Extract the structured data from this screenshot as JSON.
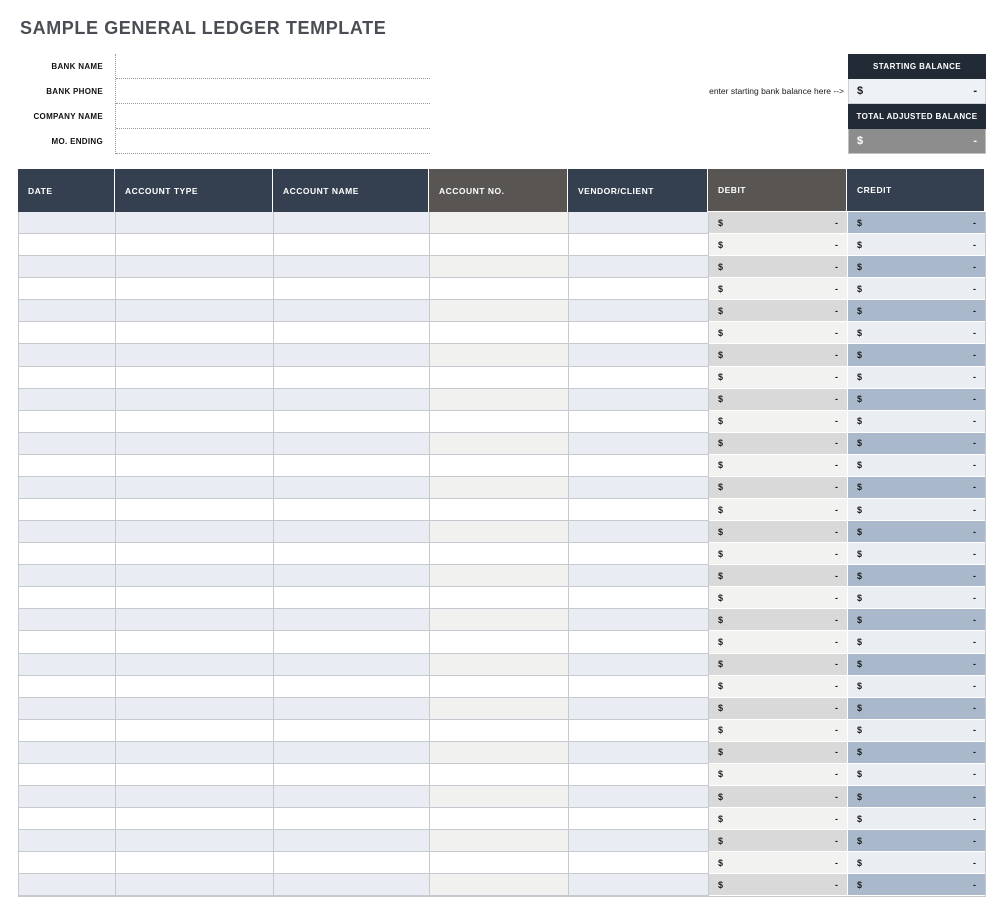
{
  "title": "SAMPLE GENERAL LEDGER TEMPLATE",
  "form": {
    "fields": [
      {
        "label": "BANK NAME",
        "value": ""
      },
      {
        "label": "BANK PHONE",
        "value": ""
      },
      {
        "label": "COMPANY NAME",
        "value": ""
      },
      {
        "label": "MO. ENDING",
        "value": ""
      }
    ]
  },
  "balance": {
    "note": "enter starting bank balance here -->",
    "starting_label": "STARTING BALANCE",
    "starting_currency": "$",
    "starting_value": "-",
    "adjusted_label": "TOTAL ADJUSTED BALANCE",
    "adjusted_currency": "$",
    "adjusted_value": "-"
  },
  "colors": {
    "table_header_navy": "#34404f",
    "table_header_gray": "#585553",
    "balance_header_navy": "#222a36",
    "row_shade_blue": "#e9ecf2",
    "row_shade_warm_gray": "#f1f1ef",
    "debit_shade": "#d9d9d9",
    "debit_light": "#f2f2f0",
    "credit_shade": "#a9b8ca",
    "credit_light": "#eaedf2",
    "adjusted_cell_gray": "#8d8d8d"
  },
  "table": {
    "headers": [
      {
        "label": "DATE",
        "theme": "navy"
      },
      {
        "label": "ACCOUNT TYPE",
        "theme": "navy"
      },
      {
        "label": "ACCOUNT NAME",
        "theme": "navy"
      },
      {
        "label": "ACCOUNT NO.",
        "theme": "gray"
      },
      {
        "label": "VENDOR/CLIENT",
        "theme": "navy"
      },
      {
        "label": "DEBIT",
        "theme": "gray"
      },
      {
        "label": "CREDIT",
        "theme": "navy"
      }
    ],
    "rows": [
      {
        "date": "",
        "account_type": "",
        "account_name": "",
        "account_no": "",
        "vendor_client": "",
        "debit_cur": "$",
        "debit_val": "-",
        "credit_cur": "$",
        "credit_val": "-"
      },
      {
        "date": "",
        "account_type": "",
        "account_name": "",
        "account_no": "",
        "vendor_client": "",
        "debit_cur": "$",
        "debit_val": "-",
        "credit_cur": "$",
        "credit_val": "-"
      },
      {
        "date": "",
        "account_type": "",
        "account_name": "",
        "account_no": "",
        "vendor_client": "",
        "debit_cur": "$",
        "debit_val": "-",
        "credit_cur": "$",
        "credit_val": "-"
      },
      {
        "date": "",
        "account_type": "",
        "account_name": "",
        "account_no": "",
        "vendor_client": "",
        "debit_cur": "$",
        "debit_val": "-",
        "credit_cur": "$",
        "credit_val": "-"
      },
      {
        "date": "",
        "account_type": "",
        "account_name": "",
        "account_no": "",
        "vendor_client": "",
        "debit_cur": "$",
        "debit_val": "-",
        "credit_cur": "$",
        "credit_val": "-"
      },
      {
        "date": "",
        "account_type": "",
        "account_name": "",
        "account_no": "",
        "vendor_client": "",
        "debit_cur": "$",
        "debit_val": "-",
        "credit_cur": "$",
        "credit_val": "-"
      },
      {
        "date": "",
        "account_type": "",
        "account_name": "",
        "account_no": "",
        "vendor_client": "",
        "debit_cur": "$",
        "debit_val": "-",
        "credit_cur": "$",
        "credit_val": "-"
      },
      {
        "date": "",
        "account_type": "",
        "account_name": "",
        "account_no": "",
        "vendor_client": "",
        "debit_cur": "$",
        "debit_val": "-",
        "credit_cur": "$",
        "credit_val": "-"
      },
      {
        "date": "",
        "account_type": "",
        "account_name": "",
        "account_no": "",
        "vendor_client": "",
        "debit_cur": "$",
        "debit_val": "-",
        "credit_cur": "$",
        "credit_val": "-"
      },
      {
        "date": "",
        "account_type": "",
        "account_name": "",
        "account_no": "",
        "vendor_client": "",
        "debit_cur": "$",
        "debit_val": "-",
        "credit_cur": "$",
        "credit_val": "-"
      },
      {
        "date": "",
        "account_type": "",
        "account_name": "",
        "account_no": "",
        "vendor_client": "",
        "debit_cur": "$",
        "debit_val": "-",
        "credit_cur": "$",
        "credit_val": "-"
      },
      {
        "date": "",
        "account_type": "",
        "account_name": "",
        "account_no": "",
        "vendor_client": "",
        "debit_cur": "$",
        "debit_val": "-",
        "credit_cur": "$",
        "credit_val": "-"
      },
      {
        "date": "",
        "account_type": "",
        "account_name": "",
        "account_no": "",
        "vendor_client": "",
        "debit_cur": "$",
        "debit_val": "-",
        "credit_cur": "$",
        "credit_val": "-"
      },
      {
        "date": "",
        "account_type": "",
        "account_name": "",
        "account_no": "",
        "vendor_client": "",
        "debit_cur": "$",
        "debit_val": "-",
        "credit_cur": "$",
        "credit_val": "-"
      },
      {
        "date": "",
        "account_type": "",
        "account_name": "",
        "account_no": "",
        "vendor_client": "",
        "debit_cur": "$",
        "debit_val": "-",
        "credit_cur": "$",
        "credit_val": "-"
      },
      {
        "date": "",
        "account_type": "",
        "account_name": "",
        "account_no": "",
        "vendor_client": "",
        "debit_cur": "$",
        "debit_val": "-",
        "credit_cur": "$",
        "credit_val": "-"
      },
      {
        "date": "",
        "account_type": "",
        "account_name": "",
        "account_no": "",
        "vendor_client": "",
        "debit_cur": "$",
        "debit_val": "-",
        "credit_cur": "$",
        "credit_val": "-"
      },
      {
        "date": "",
        "account_type": "",
        "account_name": "",
        "account_no": "",
        "vendor_client": "",
        "debit_cur": "$",
        "debit_val": "-",
        "credit_cur": "$",
        "credit_val": "-"
      },
      {
        "date": "",
        "account_type": "",
        "account_name": "",
        "account_no": "",
        "vendor_client": "",
        "debit_cur": "$",
        "debit_val": "-",
        "credit_cur": "$",
        "credit_val": "-"
      },
      {
        "date": "",
        "account_type": "",
        "account_name": "",
        "account_no": "",
        "vendor_client": "",
        "debit_cur": "$",
        "debit_val": "-",
        "credit_cur": "$",
        "credit_val": "-"
      },
      {
        "date": "",
        "account_type": "",
        "account_name": "",
        "account_no": "",
        "vendor_client": "",
        "debit_cur": "$",
        "debit_val": "-",
        "credit_cur": "$",
        "credit_val": "-"
      },
      {
        "date": "",
        "account_type": "",
        "account_name": "",
        "account_no": "",
        "vendor_client": "",
        "debit_cur": "$",
        "debit_val": "-",
        "credit_cur": "$",
        "credit_val": "-"
      },
      {
        "date": "",
        "account_type": "",
        "account_name": "",
        "account_no": "",
        "vendor_client": "",
        "debit_cur": "$",
        "debit_val": "-",
        "credit_cur": "$",
        "credit_val": "-"
      },
      {
        "date": "",
        "account_type": "",
        "account_name": "",
        "account_no": "",
        "vendor_client": "",
        "debit_cur": "$",
        "debit_val": "-",
        "credit_cur": "$",
        "credit_val": "-"
      },
      {
        "date": "",
        "account_type": "",
        "account_name": "",
        "account_no": "",
        "vendor_client": "",
        "debit_cur": "$",
        "debit_val": "-",
        "credit_cur": "$",
        "credit_val": "-"
      },
      {
        "date": "",
        "account_type": "",
        "account_name": "",
        "account_no": "",
        "vendor_client": "",
        "debit_cur": "$",
        "debit_val": "-",
        "credit_cur": "$",
        "credit_val": "-"
      },
      {
        "date": "",
        "account_type": "",
        "account_name": "",
        "account_no": "",
        "vendor_client": "",
        "debit_cur": "$",
        "debit_val": "-",
        "credit_cur": "$",
        "credit_val": "-"
      },
      {
        "date": "",
        "account_type": "",
        "account_name": "",
        "account_no": "",
        "vendor_client": "",
        "debit_cur": "$",
        "debit_val": "-",
        "credit_cur": "$",
        "credit_val": "-"
      },
      {
        "date": "",
        "account_type": "",
        "account_name": "",
        "account_no": "",
        "vendor_client": "",
        "debit_cur": "$",
        "debit_val": "-",
        "credit_cur": "$",
        "credit_val": "-"
      },
      {
        "date": "",
        "account_type": "",
        "account_name": "",
        "account_no": "",
        "vendor_client": "",
        "debit_cur": "$",
        "debit_val": "-",
        "credit_cur": "$",
        "credit_val": "-"
      },
      {
        "date": "",
        "account_type": "",
        "account_name": "",
        "account_no": "",
        "vendor_client": "",
        "debit_cur": "$",
        "debit_val": "-",
        "credit_cur": "$",
        "credit_val": "-"
      }
    ]
  }
}
